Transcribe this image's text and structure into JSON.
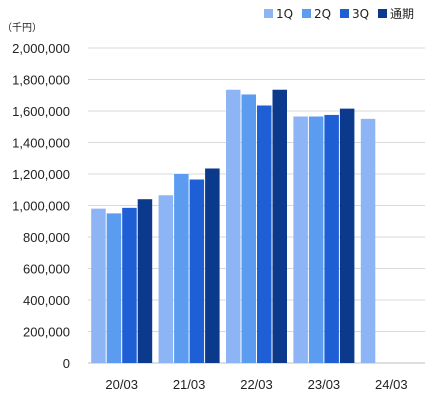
{
  "chart_data": {
    "type": "bar",
    "unit": "（千円）",
    "categories": [
      "20/03",
      "21/03",
      "22/03",
      "23/03",
      "24/03"
    ],
    "series": [
      {
        "name": "1Q",
        "color": "#8db4f5",
        "values": [
          980000,
          1065000,
          1735000,
          1565000,
          1550000
        ]
      },
      {
        "name": "2Q",
        "color": "#5b9cf0",
        "values": [
          950000,
          1200000,
          1705000,
          1565000,
          null
        ]
      },
      {
        "name": "3Q",
        "color": "#1f5fd6",
        "values": [
          985000,
          1165000,
          1635000,
          1575000,
          null
        ]
      },
      {
        "name": "通期",
        "color": "#0b3a8c",
        "values": [
          1040000,
          1235000,
          1735000,
          1615000,
          null
        ]
      }
    ],
    "ylim": [
      0,
      2000000
    ],
    "yticks": [
      0,
      200000,
      400000,
      600000,
      800000,
      1000000,
      1200000,
      1400000,
      1600000,
      1800000,
      2000000
    ],
    "ytick_labels": [
      "0",
      "200,000",
      "400,000",
      "600,000",
      "800,000",
      "1,000,000",
      "1,200,000",
      "1,400,000",
      "1,600,000",
      "1,800,000",
      "2,000,000"
    ],
    "grid": true,
    "legend_position": "top-right",
    "gridline_color": "#d9d9d9",
    "axis_color": "#bfbfbf"
  }
}
